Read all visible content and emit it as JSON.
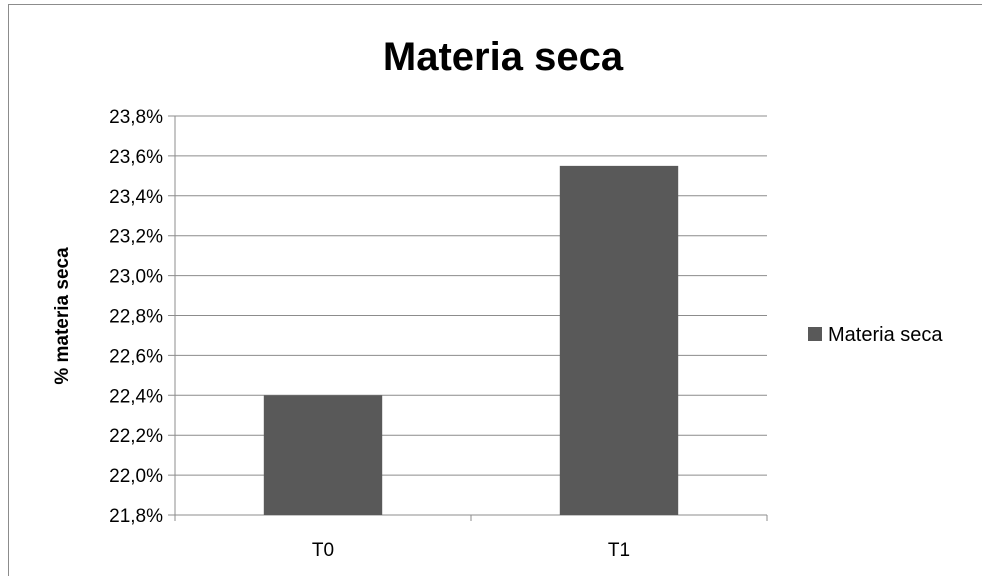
{
  "chart_data": {
    "type": "bar",
    "title": "Materia seca",
    "xlabel": "",
    "ylabel": "% materia seca",
    "categories": [
      "T0",
      "T1"
    ],
    "series": [
      {
        "name": "Materia seca",
        "values": [
          22.4,
          23.55
        ],
        "color": "#595959"
      }
    ],
    "ylim": [
      21.8,
      23.8
    ],
    "ytick_values": [
      21.8,
      22.0,
      22.2,
      22.4,
      22.6,
      22.8,
      23.0,
      23.2,
      23.4,
      23.6,
      23.8
    ],
    "ytick_labels": [
      "21,8%",
      "22,0%",
      "22,2%",
      "22,4%",
      "22,6%",
      "22,8%",
      "23,0%",
      "23,2%",
      "23,4%",
      "23,6%",
      "23,8%"
    ],
    "grid": true,
    "legend_position": "right",
    "gridline_color": "#8c8c8c"
  }
}
